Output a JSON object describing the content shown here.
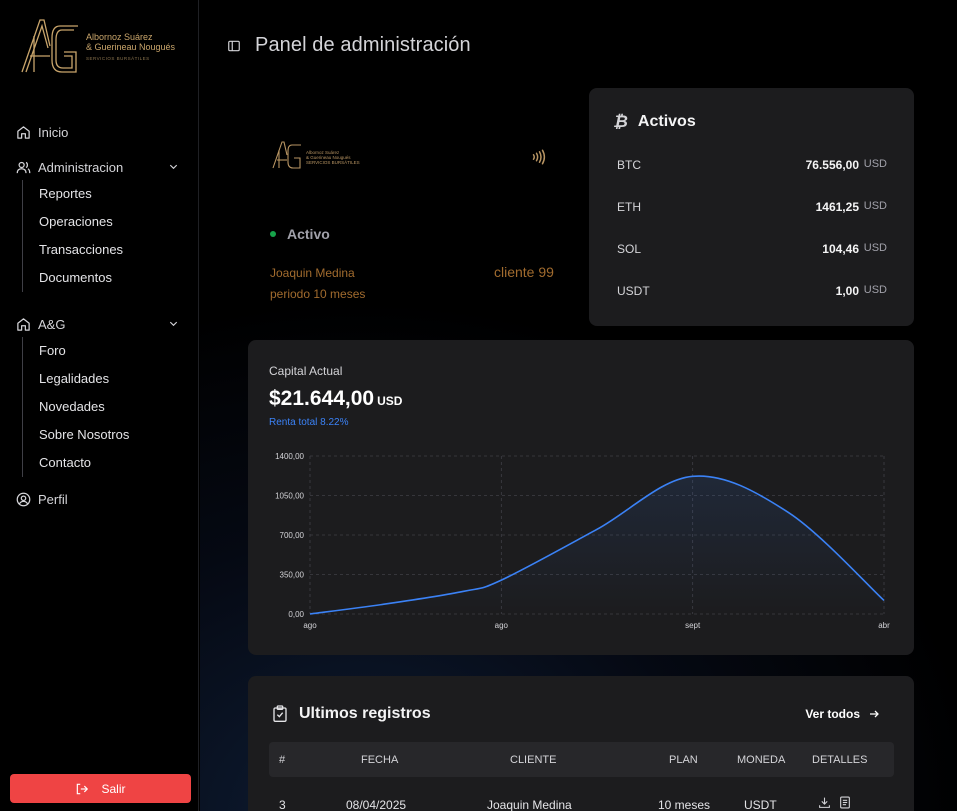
{
  "brand": {
    "name_line1": "Albornoz Suárez",
    "name_line2": "& Guerineau Nougués",
    "tagline": "SERVICIOS BURSÁTILES",
    "gold": "#c9a56b"
  },
  "sidebar": {
    "items": [
      {
        "label": "Inicio",
        "icon": "home-icon"
      },
      {
        "label": "Administracion",
        "icon": "users-icon",
        "children": [
          "Reportes",
          "Operaciones",
          "Transacciones",
          "Documentos"
        ]
      },
      {
        "label": "A&G",
        "icon": "home-icon",
        "children": [
          "Foro",
          "Legalidades",
          "Novedades",
          "Sobre Nosotros",
          "Contacto"
        ]
      },
      {
        "label": "Perfil",
        "icon": "user-circle-icon"
      }
    ],
    "logout_label": "Salir",
    "logout_color": "#ef4444"
  },
  "header": {
    "title": "Panel de administración"
  },
  "card": {
    "status": "Activo",
    "holder": "Joaquin Medina",
    "period": "periodo 10 meses",
    "client": "cliente 99"
  },
  "assets": {
    "title": "Activos",
    "rows": [
      {
        "symbol": "BTC",
        "value": "76.556,00",
        "currency": "USD"
      },
      {
        "symbol": "ETH",
        "value": "1461,25",
        "currency": "USD"
      },
      {
        "symbol": "SOL",
        "value": "104,46",
        "currency": "USD"
      },
      {
        "symbol": "USDT",
        "value": "1,00",
        "currency": "USD"
      }
    ]
  },
  "capital": {
    "label": "Capital Actual",
    "value": "$21.644,00",
    "currency": "USD",
    "renta": "Renta total 8.22%"
  },
  "chart_data": {
    "type": "area",
    "x_labels": [
      "ago",
      "ago",
      "sept",
      "abr"
    ],
    "x": [
      0,
      1,
      2,
      3
    ],
    "curve": [
      [
        0,
        0
      ],
      [
        0.4,
        90
      ],
      [
        0.8,
        200
      ],
      [
        1.0,
        300
      ],
      [
        1.5,
        750
      ],
      [
        2.0,
        1220
      ],
      [
        2.5,
        900
      ],
      [
        3.0,
        120
      ]
    ],
    "y_ticks": [
      "0,00",
      "350,00",
      "700,00",
      "1050,00",
      "1400,00"
    ],
    "ylim": [
      0,
      1400
    ],
    "line_color": "#3b82f6",
    "grid": true
  },
  "records": {
    "title": "Ultimos registros",
    "view_all": "Ver todos",
    "columns": [
      "#",
      "FECHA",
      "CLIENTE",
      "PLAN",
      "MONEDA",
      "DETALLES"
    ],
    "rows": [
      {
        "num": "3",
        "fecha": "08/04/2025",
        "cliente": "Joaquin Medina",
        "plan": "10 meses",
        "moneda": "USDT"
      }
    ]
  }
}
